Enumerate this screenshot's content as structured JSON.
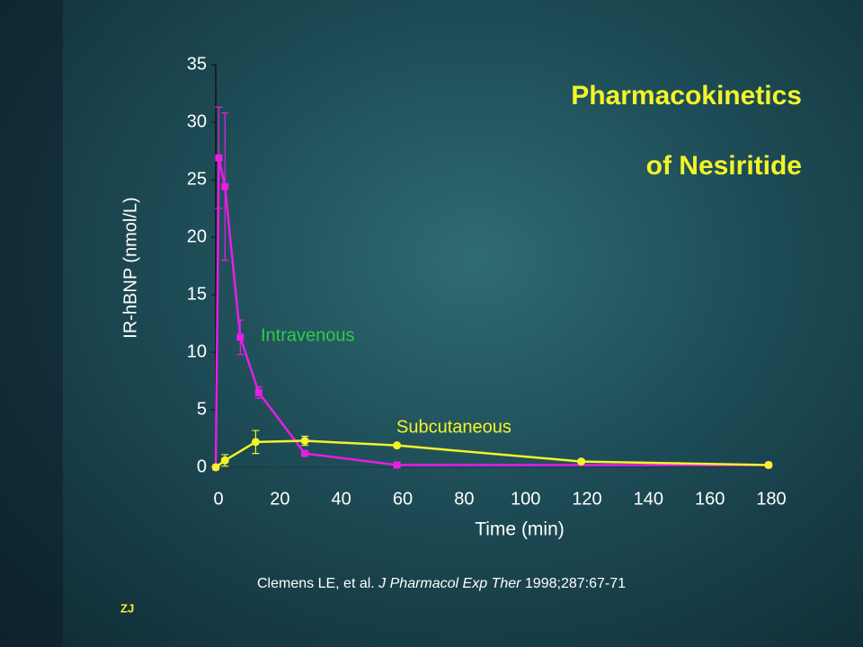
{
  "chart_data": {
    "type": "line",
    "title": [
      "Pharmacokinetics",
      "of Nesiritide"
    ],
    "xlabel": "Time (min)",
    "ylabel": "IR-hBNP (nmol/L)",
    "xlim": [
      0,
      180
    ],
    "ylim": [
      0,
      35
    ],
    "xticks": [
      0,
      20,
      40,
      60,
      80,
      100,
      120,
      140,
      160,
      180
    ],
    "yticks": [
      0,
      5,
      10,
      15,
      20,
      25,
      30,
      35
    ],
    "series": [
      {
        "name": "Intravenous",
        "color": "#e61ee6",
        "label_color": "#2ecc4a",
        "marker": "square",
        "x": [
          0,
          1,
          3,
          8,
          14,
          29,
          59,
          180
        ],
        "values": [
          0,
          26.9,
          24.4,
          11.3,
          6.5,
          1.2,
          0.2,
          0.2
        ],
        "errors": [
          null,
          4.4,
          6.4,
          1.5,
          0.5,
          null,
          null,
          null
        ]
      },
      {
        "name": "Subcutaneous",
        "color": "#f4f428",
        "label_color": "#f4f428",
        "marker": "circle",
        "x": [
          0,
          3,
          13,
          29,
          59,
          119,
          180
        ],
        "values": [
          0,
          0.6,
          2.2,
          2.3,
          1.9,
          0.5,
          0.2
        ],
        "errors": [
          null,
          0.5,
          1.0,
          0.4,
          null,
          null,
          null
        ]
      }
    ],
    "citation": [
      "Clemens LE, et al. ",
      "J Pharmacol Exp Ther",
      " 1998;287:67-71"
    ],
    "footer": "ZJ"
  }
}
